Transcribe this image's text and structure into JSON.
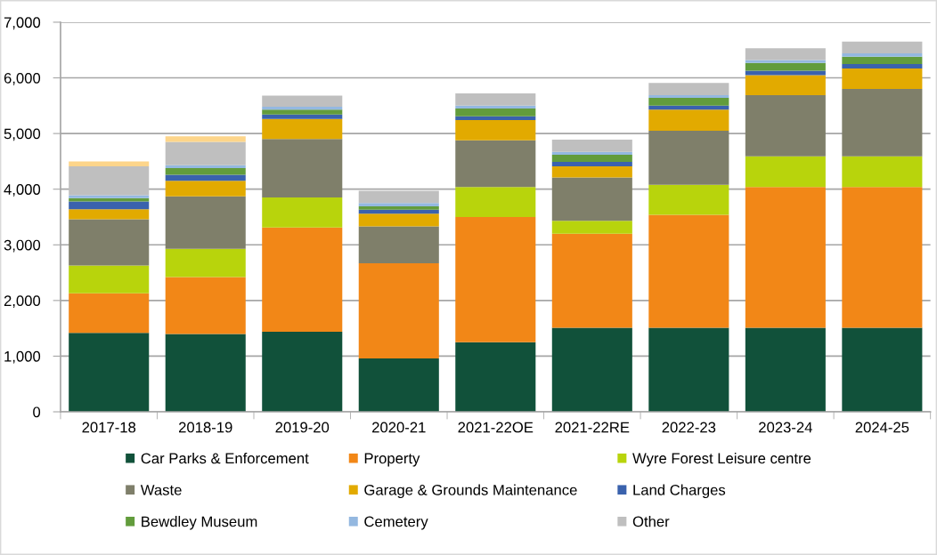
{
  "chart_data": {
    "type": "bar",
    "stacked": true,
    "categories": [
      "2017-18",
      "2018-19",
      "2019-20",
      "2020-21",
      "2021-22OE",
      "2021-22RE",
      "2022-23",
      "2023-24",
      "2024-25"
    ],
    "series": [
      {
        "name": "Car Parks & Enforcement",
        "color": "#11513a",
        "values": [
          1420,
          1400,
          1440,
          960,
          1250,
          1510,
          1510,
          1510,
          1510
        ]
      },
      {
        "name": "Property",
        "color": "#f28717",
        "values": [
          710,
          1020,
          1870,
          1710,
          2250,
          1690,
          2030,
          2530,
          2530
        ]
      },
      {
        "name": "Wyre Forest Leisure centre",
        "color": "#b8d40c",
        "values": [
          500,
          510,
          540,
          null,
          540,
          230,
          540,
          550,
          550
        ]
      },
      {
        "name": "Waste",
        "color": "#7f7f6a",
        "values": [
          830,
          940,
          1050,
          660,
          840,
          780,
          970,
          1100,
          1210
        ]
      },
      {
        "name": "Garage & Grounds Maintenance",
        "color": "#e2aa00",
        "values": [
          180,
          280,
          360,
          230,
          360,
          200,
          380,
          360,
          370
        ]
      },
      {
        "name": "Land Charges",
        "color": "#3a62ad",
        "values": [
          140,
          110,
          80,
          70,
          70,
          80,
          70,
          80,
          80
        ]
      },
      {
        "name": "Bewdley Museum",
        "color": "#629c3c",
        "values": [
          60,
          120,
          90,
          60,
          140,
          130,
          140,
          140,
          130
        ]
      },
      {
        "name": "Cemetery",
        "color": "#94b8e0",
        "values": [
          50,
          50,
          50,
          60,
          50,
          50,
          50,
          50,
          60
        ]
      },
      {
        "name": "Other",
        "color": "#bfbfbf",
        "values": [
          520,
          420,
          200,
          220,
          220,
          220,
          220,
          210,
          210
        ]
      },
      {
        "color": "#fdd58a",
        "values": [
          90,
          100,
          null,
          null,
          null,
          null,
          null,
          null,
          null
        ]
      }
    ],
    "ylim": [
      0,
      7000
    ],
    "yticks": [
      0,
      {
        "value": 1000,
        "label": "1,000"
      },
      {
        "value": 2000,
        "label": "2,000"
      },
      {
        "value": 3000,
        "label": "3,000"
      },
      {
        "value": 4000,
        "label": "4,000"
      },
      {
        "value": 5000,
        "label": "5,000"
      },
      {
        "value": 6000,
        "label": "6,000"
      },
      {
        "value": 7000,
        "label": "7,000"
      }
    ],
    "grid": "y",
    "legend": "bottom"
  }
}
